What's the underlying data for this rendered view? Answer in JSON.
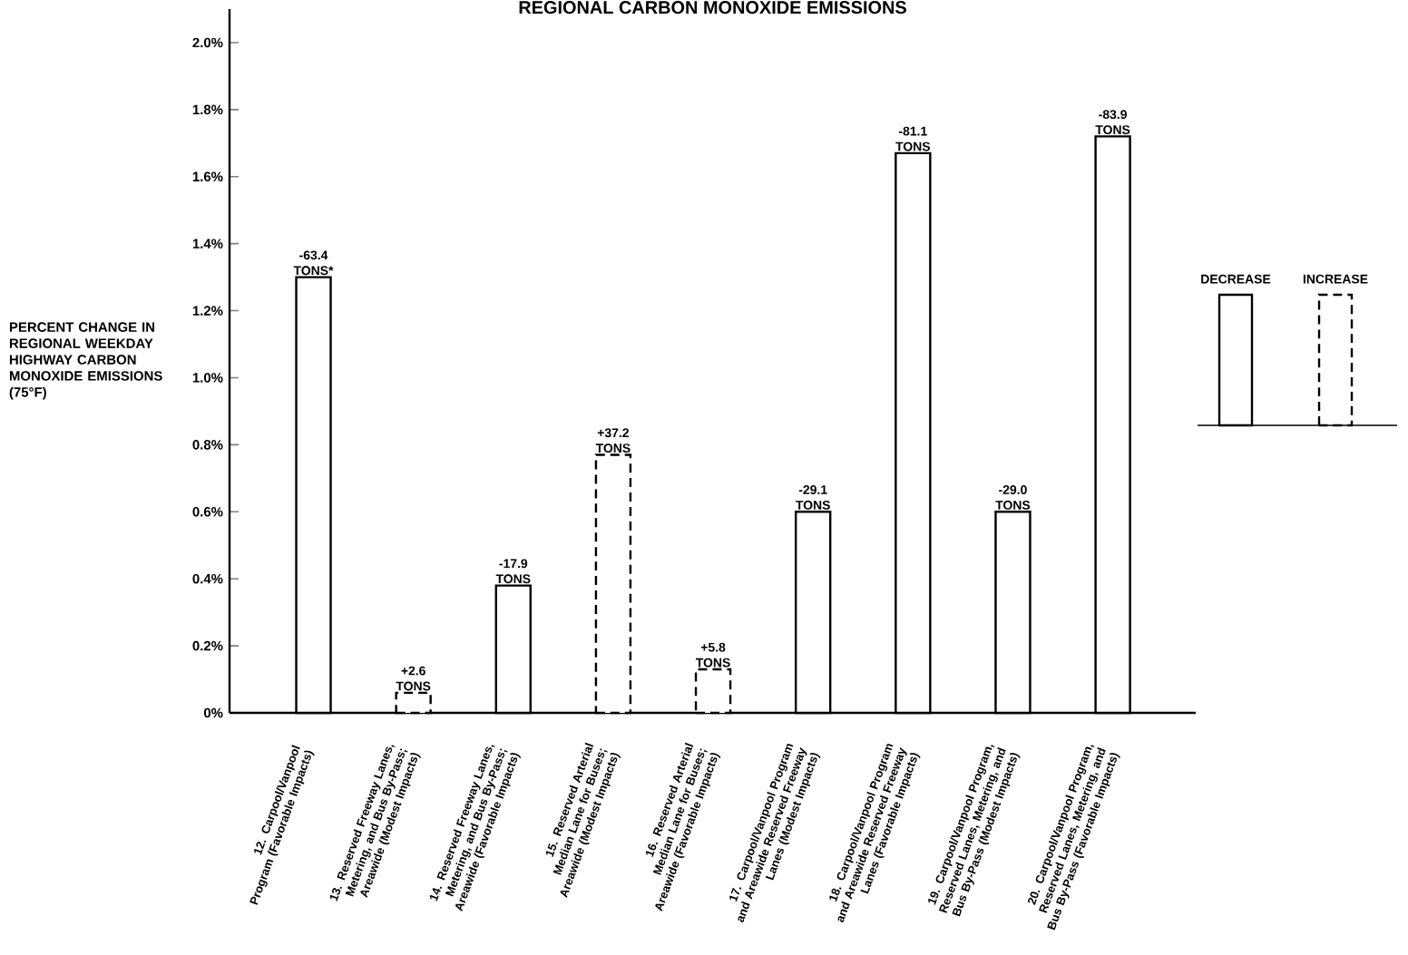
{
  "chart_data": {
    "type": "bar",
    "title": "REGIONAL CARBON MONOXIDE EMISSIONS",
    "ylabel": "PERCENT CHANGE IN REGIONAL WEEKDAY HIGHWAY CARBON MONOXIDE EMISSIONS (75°F)",
    "categories": [
      "12. Carpool/Vanpool Program (Favorable Impacts)",
      "13. Reserved Freeway Lanes, Metering, and Bus By-Pass; Areawide (Modest Impacts)",
      "14. Reserved Freeway Lanes, Metering, and Bus By-Pass; Areawide (Favorable Impacts)",
      "15. Reserved Arterial Median Lane for Buses; Areawide (Modest Impacts)",
      "16. Reserved Arterial Median Lane for Buses; Areawide (Favorable Impacts)",
      "17. Carpool/Vanpool Program and Areawide Reserved Freeway Lanes (Modest Impacts)",
      "18. Carpool/Vanpool Program and Areawide Reserved Freeway Lanes (Favorable Impacts)",
      "19. Carpool/Vanpool Program, Reserved Lanes, Metering, and Bus By-Pass (Modest Impacts)",
      "20. Carpool/Vanpool Program, Reserved Lanes, Metering, and Bus By-Pass (Favorable Impacts)"
    ],
    "series": [
      {
        "name": "DECREASE",
        "color": "#000000",
        "line_style": "solid",
        "values": [
          1.3,
          null,
          0.38,
          null,
          null,
          0.6,
          1.67,
          0.6,
          1.72
        ]
      },
      {
        "name": "INCREASE",
        "color": "#000000",
        "line_style": "dashed",
        "values": [
          null,
          0.06,
          null,
          0.77,
          0.13,
          null,
          null,
          null,
          null
        ]
      }
    ],
    "annotations": [
      {
        "text": "-63.4 TONS*",
        "x": "12. Carpool/Vanpool Program (Favorable Impacts)",
        "y": 1.3
      },
      {
        "text": "+2.6 TONS",
        "x": "13. Reserved Freeway Lanes, Metering, and Bus By-Pass; Areawide (Modest Impacts)",
        "y": 0.06
      },
      {
        "text": "-17.9 TONS",
        "x": "14. Reserved Freeway Lanes, Metering, and Bus By-Pass; Areawide (Favorable Impacts)",
        "y": 0.38
      },
      {
        "text": "+37.2 TONS",
        "x": "15. Reserved Arterial Median Lane for Buses; Areawide (Modest Impacts)",
        "y": 0.77
      },
      {
        "text": "+5.8 TONS",
        "x": "16. Reserved Arterial Median Lane for Buses; Areawide (Favorable Impacts)",
        "y": 0.13
      },
      {
        "text": "-29.1 TONS",
        "x": "17. Carpool/Vanpool Program and Areawide Reserved Freeway Lanes (Modest Impacts)",
        "y": 0.6
      },
      {
        "text": "-81.1 TONS",
        "x": "18. Carpool/Vanpool Program and Areawide Reserved Freeway Lanes (Favorable Impacts)",
        "y": 1.67
      },
      {
        "text": "-29.0 TONS",
        "x": "19. Carpool/Vanpool Program, Reserved Lanes, Metering, and Bus By-Pass (Modest Impacts)",
        "y": 0.6
      },
      {
        "text": "-83.9 TONS",
        "x": "20. Carpool/Vanpool Program, Reserved Lanes, Metering, and Bus By-Pass (Favorable Impacts)",
        "y": 1.72
      }
    ],
    "ylim": [
      0,
      2.1
    ],
    "yticks": [
      {
        "value": 0,
        "label": "0%"
      },
      {
        "value": 0.2,
        "label": "0.2%"
      },
      {
        "value": 0.4,
        "label": "0.4%"
      },
      {
        "value": 0.6,
        "label": "0.6%"
      },
      {
        "value": 0.8,
        "label": "0.8%"
      },
      {
        "value": 1.0,
        "label": "1.0%"
      },
      {
        "value": 1.2,
        "label": "1.2%"
      },
      {
        "value": 1.4,
        "label": "1.4%"
      },
      {
        "value": 1.6,
        "label": "1.6%"
      },
      {
        "value": 1.8,
        "label": "1.8%"
      },
      {
        "value": 2.0,
        "label": "2.0%"
      }
    ],
    "grid": false,
    "legend": "right"
  }
}
